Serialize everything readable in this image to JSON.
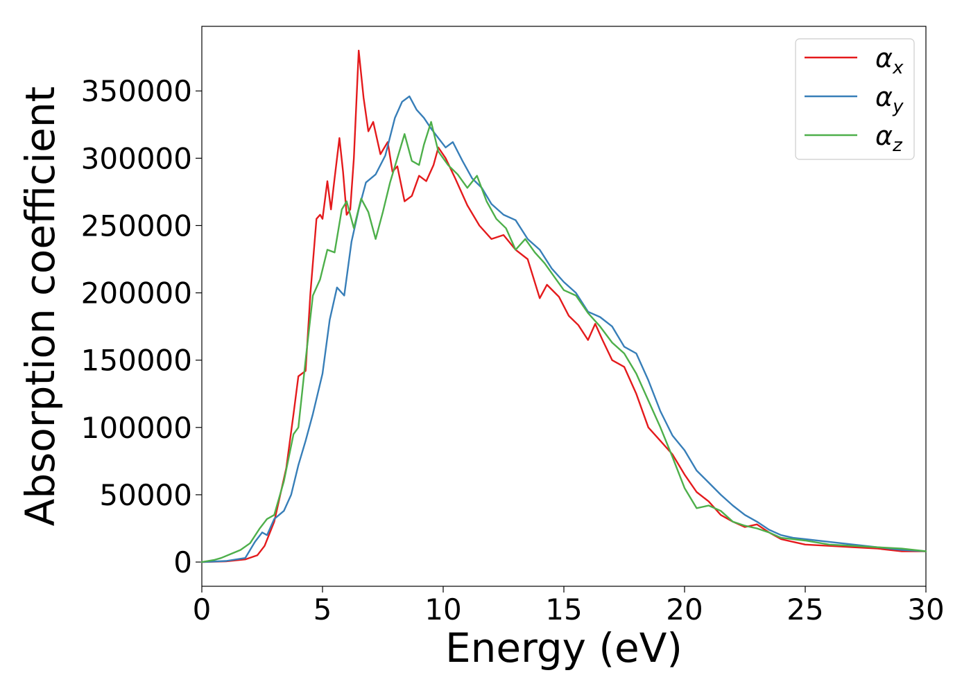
{
  "chart_data": {
    "type": "line",
    "title": "",
    "xlabel": "Energy (eV)",
    "ylabel": "Absorption coefficient",
    "xlim": [
      0,
      30
    ],
    "ylim": [
      -18000,
      398000
    ],
    "xticks": [
      0,
      5,
      10,
      15,
      20,
      25,
      30
    ],
    "yticks": [
      0,
      50000,
      100000,
      150000,
      200000,
      250000,
      300000,
      350000
    ],
    "grid": false,
    "legend_position": "top-right",
    "series": [
      {
        "name": "α_x",
        "color": "#e41a1c",
        "x": [
          0,
          1.0,
          1.8,
          2.3,
          2.6,
          3.0,
          3.5,
          3.8,
          4.0,
          4.3,
          4.5,
          4.75,
          4.9,
          5.0,
          5.2,
          5.35,
          5.5,
          5.7,
          5.85,
          6.0,
          6.15,
          6.3,
          6.5,
          6.7,
          6.9,
          7.1,
          7.4,
          7.7,
          7.9,
          8.1,
          8.4,
          8.7,
          9.0,
          9.3,
          9.6,
          9.8,
          10.1,
          10.5,
          11.0,
          11.5,
          12.0,
          12.5,
          13.0,
          13.5,
          14.0,
          14.3,
          14.8,
          15.2,
          15.6,
          16.0,
          16.3,
          16.6,
          17.0,
          17.5,
          18.0,
          18.5,
          19.0,
          19.5,
          20.0,
          20.5,
          21.0,
          21.5,
          22.0,
          22.5,
          23.0,
          23.5,
          24.0,
          24.5,
          25.0,
          26.0,
          27.0,
          28.0,
          29.0,
          30.0
        ],
        "values": [
          0,
          500,
          2000,
          5000,
          12000,
          30000,
          70000,
          110000,
          138000,
          142000,
          200000,
          255000,
          258000,
          255000,
          283000,
          262000,
          285000,
          315000,
          290000,
          258000,
          262000,
          300000,
          380000,
          345000,
          320000,
          327000,
          303000,
          312000,
          290000,
          294000,
          268000,
          272000,
          287000,
          283000,
          295000,
          308000,
          300000,
          285000,
          265000,
          250000,
          240000,
          243000,
          232000,
          225000,
          196000,
          206000,
          197000,
          183000,
          176000,
          165000,
          177000,
          165000,
          150000,
          145000,
          125000,
          100000,
          90000,
          80000,
          65000,
          52000,
          45000,
          35000,
          30000,
          26000,
          28000,
          22000,
          17000,
          15000,
          13000,
          12000,
          11000,
          10000,
          8000,
          8000
        ]
      },
      {
        "name": "α_y",
        "color": "#377eb8",
        "x": [
          0,
          1.0,
          1.8,
          2.2,
          2.5,
          2.7,
          3.0,
          3.4,
          3.7,
          4.0,
          4.3,
          4.6,
          5.0,
          5.3,
          5.6,
          5.9,
          6.2,
          6.5,
          6.8,
          7.2,
          7.6,
          8.0,
          8.3,
          8.6,
          8.9,
          9.2,
          9.5,
          9.8,
          10.1,
          10.4,
          10.8,
          11.2,
          11.6,
          12.0,
          12.5,
          13.0,
          13.5,
          14.0,
          14.5,
          15.0,
          15.5,
          16.0,
          16.5,
          17.0,
          17.5,
          18.0,
          18.5,
          19.0,
          19.5,
          20.0,
          20.5,
          21.0,
          21.5,
          22.0,
          22.5,
          23.0,
          23.5,
          24.0,
          24.5,
          25.0,
          26.0,
          27.0,
          28.0,
          29.0,
          30.0
        ],
        "values": [
          0,
          800,
          3000,
          15000,
          22000,
          20000,
          32000,
          38000,
          50000,
          72000,
          90000,
          110000,
          140000,
          180000,
          204000,
          198000,
          238000,
          262000,
          282000,
          288000,
          302000,
          330000,
          342000,
          346000,
          336000,
          330000,
          322000,
          315000,
          308000,
          312000,
          298000,
          285000,
          278000,
          266000,
          258000,
          254000,
          240000,
          232000,
          218000,
          208000,
          200000,
          186000,
          182000,
          175000,
          160000,
          155000,
          135000,
          112000,
          94000,
          83000,
          68000,
          59000,
          50000,
          42000,
          35000,
          30000,
          24000,
          20000,
          18000,
          17000,
          15000,
          13000,
          11000,
          9000,
          8000
        ]
      },
      {
        "name": "α_z",
        "color": "#4daf4a",
        "x": [
          0,
          0.5,
          0.8,
          1.2,
          1.6,
          2.0,
          2.4,
          2.7,
          3.0,
          3.4,
          3.8,
          4.0,
          4.3,
          4.6,
          4.9,
          5.2,
          5.5,
          5.8,
          6.0,
          6.3,
          6.6,
          6.9,
          7.2,
          7.5,
          7.8,
          8.1,
          8.4,
          8.7,
          9.0,
          9.2,
          9.5,
          9.8,
          10.2,
          10.6,
          11.0,
          11.4,
          11.8,
          12.2,
          12.6,
          13.0,
          13.4,
          13.8,
          14.2,
          14.6,
          15.0,
          15.5,
          16.0,
          16.5,
          17.0,
          17.5,
          18.0,
          18.5,
          19.0,
          19.5,
          20.0,
          20.5,
          21.0,
          21.5,
          22.0,
          22.5,
          23.0,
          23.5,
          24.0,
          25.0,
          26.0,
          27.0,
          28.0,
          29.0,
          30.0
        ],
        "values": [
          0,
          1500,
          3000,
          6000,
          9000,
          14000,
          25000,
          32000,
          35000,
          60000,
          95000,
          100000,
          150000,
          198000,
          210000,
          232000,
          230000,
          262000,
          268000,
          248000,
          270000,
          260000,
          240000,
          260000,
          282000,
          300000,
          318000,
          298000,
          295000,
          310000,
          327000,
          305000,
          295000,
          288000,
          278000,
          287000,
          268000,
          255000,
          248000,
          232000,
          240000,
          230000,
          222000,
          212000,
          202000,
          198000,
          185000,
          175000,
          163000,
          155000,
          140000,
          120000,
          100000,
          78000,
          55000,
          40000,
          42000,
          38000,
          30000,
          27000,
          25000,
          22000,
          18000,
          16000,
          13000,
          12000,
          11000,
          10000,
          8000
        ]
      }
    ]
  }
}
